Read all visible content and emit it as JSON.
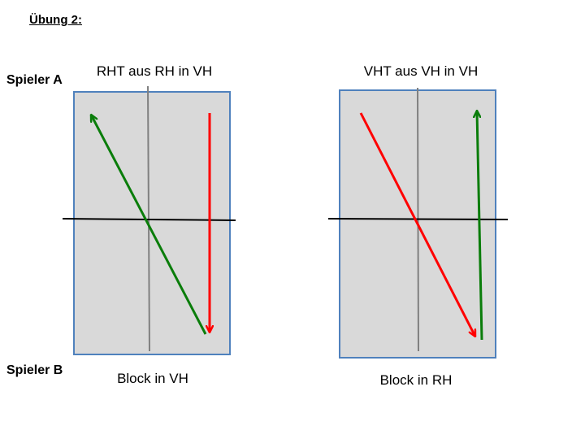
{
  "title": "Übung 2:",
  "players": {
    "top": "Spieler A",
    "bottom": "Spieler B"
  },
  "tables": [
    {
      "top_label": "RHT aus RH in VH",
      "bottom_label": "Block in VH"
    },
    {
      "top_label": "VHT aus VH in VH",
      "bottom_label": "Block in RH"
    }
  ],
  "colors": {
    "table_fill": "#d9d9d9",
    "table_border": "#4f81bd",
    "net": "#000000",
    "center_line": "#808080",
    "arrow_green": "#0a7d0a",
    "arrow_red": "#ff0000"
  }
}
